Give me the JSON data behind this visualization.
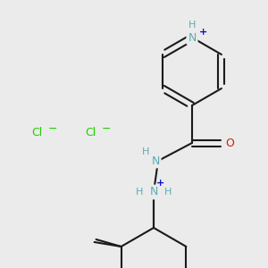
{
  "background_color": "#ebebeb",
  "bond_color": "#1a1a1a",
  "nitrogen_color": "#5aacb8",
  "nitrogen_plus_color": "#1010cc",
  "oxygen_color": "#cc2200",
  "chlorine_color": "#22cc00",
  "figsize": [
    3.0,
    3.0
  ],
  "dpi": 100,
  "xlim": [
    0,
    300
  ],
  "ylim": [
    0,
    300
  ]
}
